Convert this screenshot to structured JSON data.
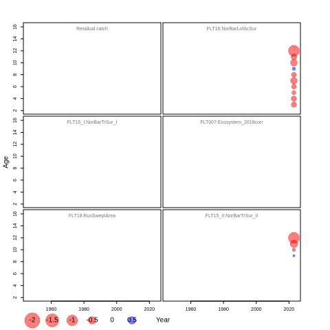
{
  "ylabel": "Age",
  "xlabel": "Year",
  "size_legend": {
    "values": [
      -2,
      -1.5,
      -1,
      -0.5,
      0,
      0.5
    ]
  },
  "chart_data": [
    {
      "type": "scatter",
      "title": "Residual catch",
      "x": [],
      "y": [],
      "values": [],
      "xlim": [
        1943,
        2027
      ],
      "ylim": [
        1.4,
        16.7
      ],
      "yticks": [
        2,
        4,
        6,
        8,
        10,
        12,
        14,
        16
      ],
      "positive_color": "#0000ff",
      "negative_color": "#ff0000"
    },
    {
      "type": "scatter",
      "title": "FLT16:NorBarLofAcSur",
      "x": [
        2023,
        2023,
        2023,
        2023,
        2023,
        2023,
        2023,
        2023,
        2023,
        2023
      ],
      "y": [
        12,
        11,
        10,
        9,
        8,
        7,
        6,
        5,
        4,
        3
      ],
      "values": [
        -1.05,
        -0.3,
        -0.4,
        0.1,
        -0.2,
        -0.4,
        -0.2,
        -0.15,
        -0.25,
        -0.25
      ],
      "xlim": [
        1943,
        2027
      ],
      "ylim": [
        1.4,
        16.7
      ],
      "positive_color": "#0000ff",
      "negative_color": "#ff0000"
    },
    {
      "type": "scatter",
      "title": "FLT15_I:NorBarTrSur_I",
      "x": [],
      "y": [],
      "values": [],
      "xlim": [
        1943,
        2027
      ],
      "ylim": [
        1.4,
        16.7
      ],
      "yticks": [
        2,
        4,
        6,
        8,
        10,
        12,
        14,
        16
      ],
      "positive_color": "#0000ff",
      "negative_color": "#ff0000"
    },
    {
      "type": "scatter",
      "title": "FLT007:Ecosystem_2018corr",
      "x": [],
      "y": [],
      "values": [],
      "xlim": [
        1943,
        2027
      ],
      "ylim": [
        1.4,
        16.7
      ],
      "positive_color": "#0000ff",
      "negative_color": "#ff0000"
    },
    {
      "type": "scatter",
      "title": "FLT18:RusSweptArea",
      "x": [],
      "y": [],
      "values": [],
      "xlim": [
        1943,
        2027
      ],
      "ylim": [
        1.4,
        16.7
      ],
      "yticks": [
        2,
        4,
        6,
        8,
        10,
        12,
        14,
        16
      ],
      "xticks": [
        1960,
        1980,
        2000,
        2020
      ],
      "positive_color": "#0000ff",
      "negative_color": "#ff0000"
    },
    {
      "type": "scatter",
      "title": "FLT15_II:NorBarTrSur_II",
      "x": [
        2023,
        2023,
        2023,
        2023
      ],
      "y": [
        12,
        11,
        10,
        9
      ],
      "values": [
        -1.05,
        -0.5,
        -0.1,
        0.04
      ],
      "xlim": [
        1943,
        2027
      ],
      "ylim": [
        1.4,
        16.7
      ],
      "xticks": [
        1960,
        1980,
        2000,
        2020
      ],
      "positive_color": "#0000ff",
      "negative_color": "#ff0000"
    }
  ]
}
